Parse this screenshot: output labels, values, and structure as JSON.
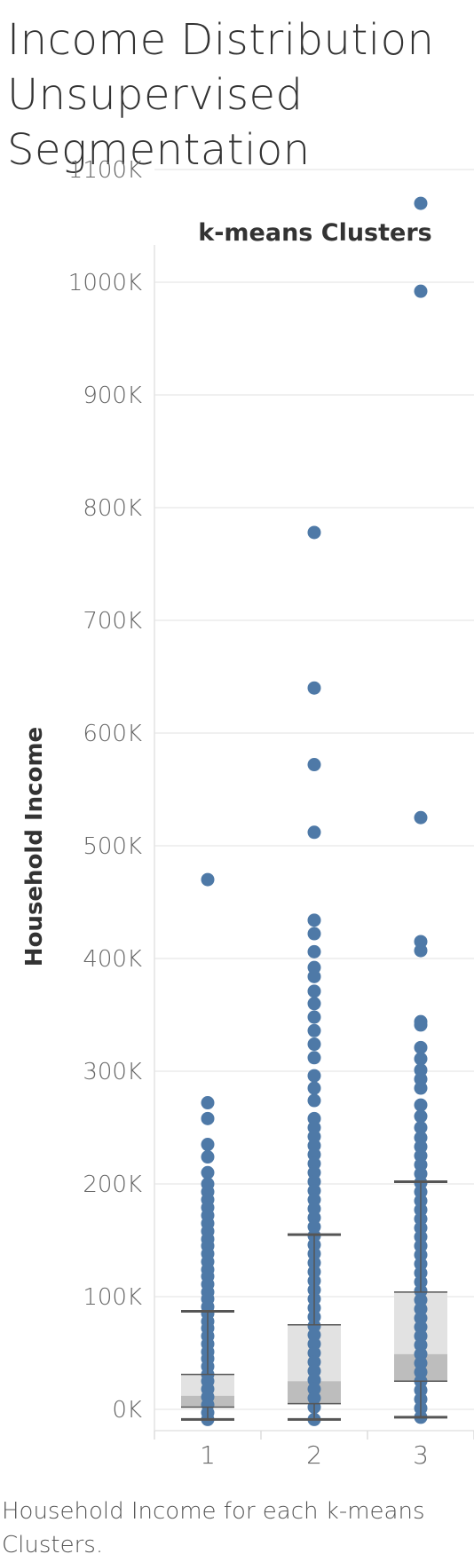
{
  "title_lines": [
    "Income Distribution",
    "Unsupervised",
    "Segmentation"
  ],
  "caption": "Household Income for each k-means Clusters.",
  "chart_data": {
    "type": "box",
    "title": "k-means Clusters",
    "xlabel": "",
    "ylabel": "Household Income",
    "categories": [
      "1",
      "2",
      "3"
    ],
    "ylim": [
      -15000,
      1120000
    ],
    "yticks": [
      0,
      100000,
      200000,
      300000,
      400000,
      500000,
      600000,
      700000,
      800000,
      900000,
      1000000,
      1100000
    ],
    "ytick_labels": [
      "0K",
      "100K",
      "200K",
      "300K",
      "400K",
      "500K",
      "600K",
      "700K",
      "800K",
      "900K",
      "1000K",
      "1100K"
    ],
    "grid": true,
    "boxes": [
      {
        "category": "1",
        "whisker_low": -9000,
        "q1": 2000,
        "median": 12000,
        "q3": 31000,
        "whisker_high": 87000
      },
      {
        "category": "2",
        "whisker_low": -9000,
        "q1": 5000,
        "median": 25000,
        "q3": 75000,
        "whisker_high": 155000
      },
      {
        "category": "3",
        "whisker_low": -7000,
        "q1": 25000,
        "median": 49000,
        "q3": 104000,
        "whisker_high": 202000
      }
    ],
    "point_series": [
      {
        "category": "1",
        "values": [
          470000,
          272000,
          258000,
          235000,
          224000,
          210000,
          200000,
          193000,
          186000,
          179000,
          172000,
          165000,
          158000,
          151000,
          145000,
          138000,
          131000,
          124000,
          118000,
          111000,
          104000,
          98000,
          91000,
          85000,
          78000,
          72000,
          65000,
          58000,
          51000,
          45000,
          38000,
          31000,
          25000,
          18000,
          11000,
          4000,
          -3000,
          -9000
        ]
      },
      {
        "category": "2",
        "values": [
          778000,
          640000,
          572000,
          512000,
          434000,
          422000,
          406000,
          392000,
          384000,
          371000,
          360000,
          348000,
          336000,
          324000,
          312000,
          296000,
          285000,
          274000,
          258000,
          250000,
          242000,
          234000,
          226000,
          218000,
          210000,
          202000,
          194000,
          186000,
          178000,
          170000,
          162000,
          154000,
          146000,
          138000,
          130000,
          122000,
          114000,
          106000,
          98000,
          90000,
          82000,
          74000,
          66000,
          58000,
          50000,
          42000,
          34000,
          26000,
          18000,
          10000,
          2000,
          -9000
        ]
      },
      {
        "category": "3",
        "values": [
          1070000,
          992000,
          525000,
          415000,
          407000,
          344000,
          341000,
          321000,
          311000,
          301000,
          293000,
          285000,
          270000,
          260000,
          250000,
          241000,
          233000,
          225000,
          217000,
          209000,
          201000,
          193000,
          185000,
          177000,
          169000,
          161000,
          153000,
          145000,
          137000,
          129000,
          121000,
          113000,
          105000,
          97000,
          89000,
          81000,
          73000,
          65000,
          57000,
          49000,
          41000,
          33000,
          25000,
          17000,
          9000,
          1000,
          -7000
        ]
      }
    ],
    "colors": {
      "points": "#4e79a7",
      "box_outer": "#e2e2e2",
      "box_inner": "#bdbdbd",
      "whisker": "#555555",
      "grid": "#ececec",
      "tick_text": "#666666",
      "title_text": "#333333"
    }
  }
}
